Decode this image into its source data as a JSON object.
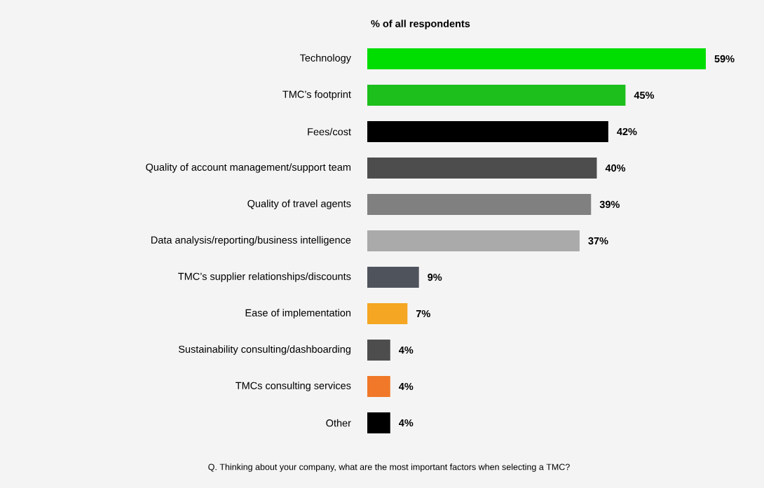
{
  "chart_data": {
    "type": "bar",
    "orientation": "horizontal",
    "title": "% of all respondents",
    "categories": [
      "Technology",
      "TMC’s footprint",
      "Fees/cost",
      "Quality of account management/support team",
      "Quality of travel agents",
      "Data analysis/reporting/business intelligence",
      "TMC’s supplier relationships/discounts",
      "Ease of implementation",
      "Sustainability consulting/dashboarding",
      "TMCs consulting services",
      "Other"
    ],
    "values": [
      59,
      45,
      42,
      40,
      39,
      37,
      9,
      7,
      4,
      4,
      4
    ],
    "colors": [
      "#00dd00",
      "#1cbf1c",
      "#000000",
      "#4d4d4d",
      "#808080",
      "#aaaaaa",
      "#4f535c",
      "#f5a623",
      "#4d4d4d",
      "#f07828",
      "#000000"
    ],
    "value_labels": [
      "59%",
      "45%",
      "42%",
      "40%",
      "39%",
      "37%",
      "9%",
      "7%",
      "4%",
      "4%",
      "4%"
    ],
    "tick_labels": "y",
    "annotations": [
      "Q. Thinking about your company, what are the most important factors when selecting a TMC?"
    ]
  }
}
